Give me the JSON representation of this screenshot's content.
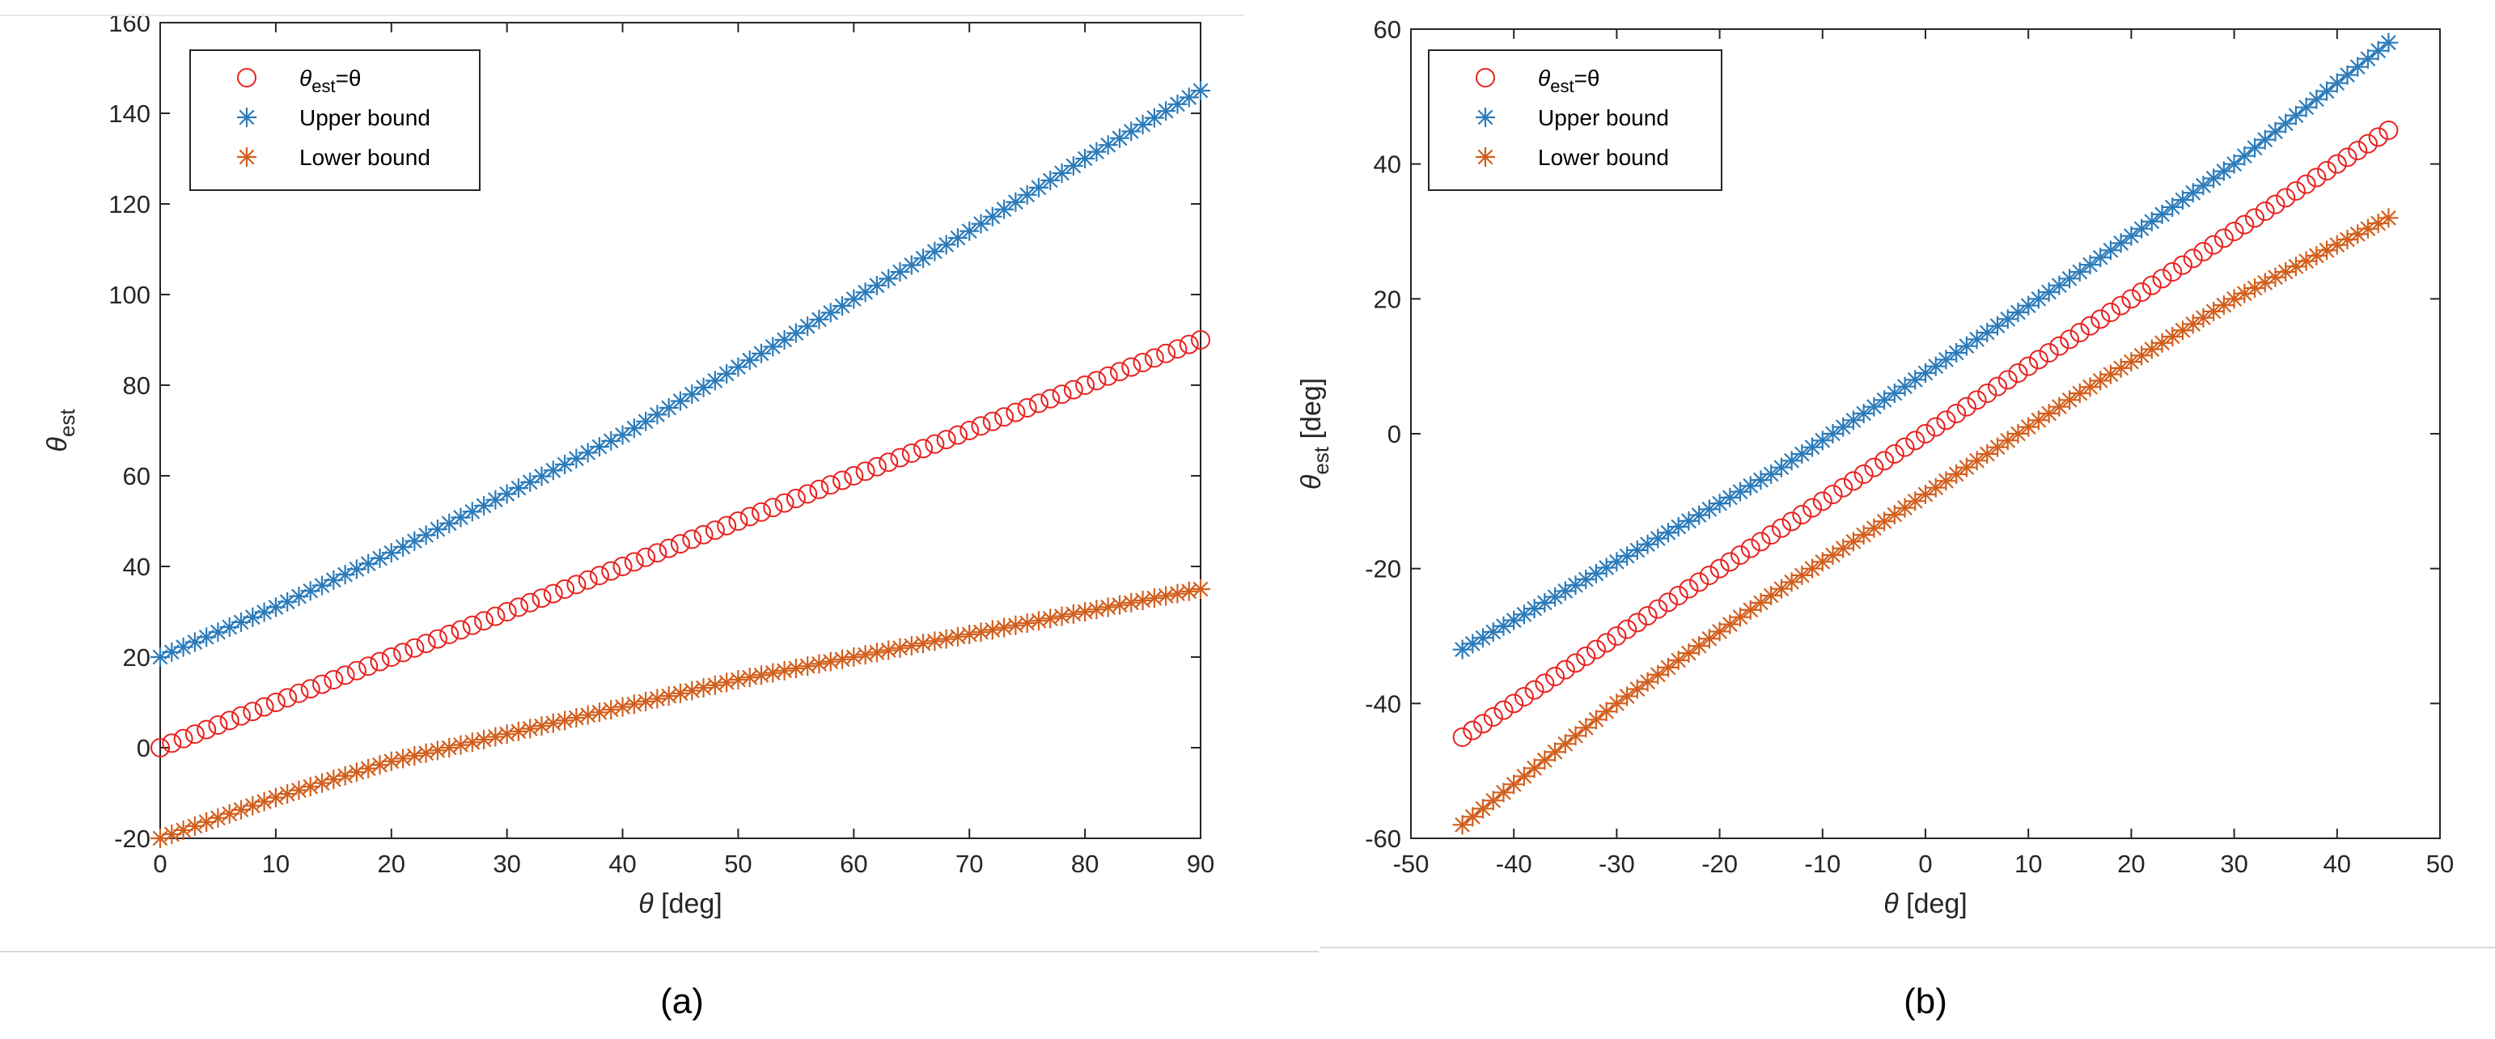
{
  "chart_data": [
    {
      "type": "scatter",
      "panel_label": "(a)",
      "xlabel_symbol": "θ",
      "xlabel_unit": " [deg]",
      "ylabel_symbol": "θ",
      "ylabel_subscript": "est",
      "ylabel_unit": "",
      "xlim": [
        0,
        90
      ],
      "ylim": [
        -20,
        160
      ],
      "xticks": [
        "0",
        "10",
        "20",
        "30",
        "40",
        "50",
        "60",
        "70",
        "80",
        "90"
      ],
      "yticks": [
        "-20",
        "0",
        "20",
        "40",
        "60",
        "80",
        "100",
        "120",
        "140",
        "160"
      ],
      "legend": [
        {
          "label_symbol": "θ",
          "label_subscript": "est",
          "label_rest": "=θ",
          "marker": "circle",
          "color": "#e8211f"
        },
        {
          "label": "Upper bound",
          "marker": "asterisk",
          "color": "#2b7bba"
        },
        {
          "label": "Lower bound",
          "marker": "asterisk",
          "color": "#d25e1c"
        }
      ],
      "legend_position": "top-left",
      "series": [
        {
          "name": "θest=θ",
          "marker": "circle",
          "color": "#e8211f",
          "x_start": 0,
          "x_end": 90,
          "points": 91,
          "x": [
            0,
            10,
            20,
            30,
            40,
            50,
            60,
            70,
            80,
            90
          ],
          "y": [
            0,
            10,
            20,
            30,
            40,
            50,
            60,
            70,
            80,
            90
          ]
        },
        {
          "name": "Upper bound",
          "marker": "asterisk",
          "color": "#2b7bba",
          "x_start": 0,
          "x_end": 90,
          "points": 91,
          "x": [
            0,
            10,
            20,
            30,
            40,
            50,
            60,
            70,
            80,
            90
          ],
          "y": [
            20,
            31,
            43,
            56,
            69,
            84,
            99,
            114,
            130,
            145
          ]
        },
        {
          "name": "Lower bound",
          "marker": "asterisk",
          "color": "#d25e1c",
          "x_start": 0,
          "x_end": 90,
          "points": 91,
          "x": [
            0,
            10,
            20,
            30,
            40,
            50,
            60,
            70,
            80,
            90
          ],
          "y": [
            -20,
            -11,
            -3,
            3,
            9,
            15,
            20,
            25,
            30,
            35
          ]
        }
      ]
    },
    {
      "type": "scatter",
      "panel_label": "(b)",
      "xlabel_symbol": "θ",
      "xlabel_unit": " [deg]",
      "ylabel_symbol": "θ",
      "ylabel_subscript": "est",
      "ylabel_unit": " [deg]",
      "xlim": [
        -50,
        50
      ],
      "ylim": [
        -60,
        60
      ],
      "xticks": [
        "-50",
        "-40",
        "-30",
        "-20",
        "-10",
        "0",
        "10",
        "20",
        "30",
        "40",
        "50"
      ],
      "yticks": [
        "-60",
        "-40",
        "-20",
        "0",
        "20",
        "40",
        "60"
      ],
      "legend": [
        {
          "label_symbol": "θ",
          "label_subscript": "est",
          "label_rest": "=θ",
          "marker": "circle",
          "color": "#e8211f"
        },
        {
          "label": "Upper bound",
          "marker": "asterisk",
          "color": "#2b7bba"
        },
        {
          "label": "Lower bound",
          "marker": "asterisk",
          "color": "#d25e1c"
        }
      ],
      "legend_position": "top-left",
      "series": [
        {
          "name": "θest=θ",
          "marker": "circle",
          "color": "#e8211f",
          "x_start": -45,
          "x_end": 45,
          "points": 91,
          "x": [
            -45,
            -30,
            -15,
            0,
            15,
            30,
            45
          ],
          "y": [
            -45,
            -30,
            -15,
            0,
            15,
            30,
            45
          ]
        },
        {
          "name": "Upper bound",
          "marker": "asterisk",
          "color": "#2b7bba",
          "x_start": -45,
          "x_end": 45,
          "points": 91,
          "x": [
            -45,
            -30,
            -15,
            0,
            15,
            30,
            45
          ],
          "y": [
            -32,
            -19,
            -6,
            9,
            24,
            40,
            58
          ]
        },
        {
          "name": "Lower bound",
          "marker": "asterisk",
          "color": "#d25e1c",
          "x_start": -45,
          "x_end": 45,
          "points": 91,
          "x": [
            -45,
            -30,
            -15,
            0,
            15,
            30,
            45
          ],
          "y": [
            -58,
            -40,
            -24,
            -9,
            6,
            20,
            32
          ]
        }
      ]
    }
  ]
}
